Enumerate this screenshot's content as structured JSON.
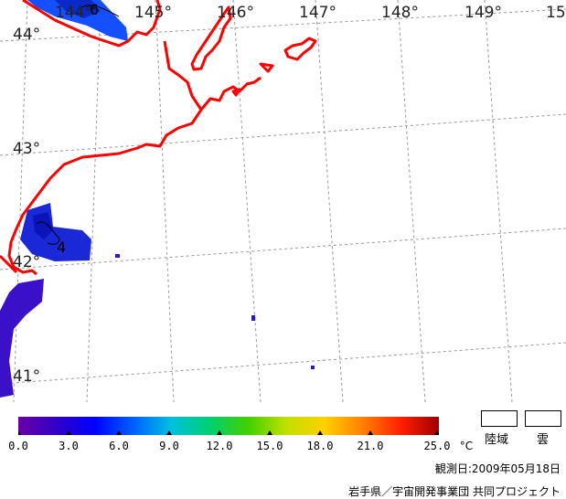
{
  "map": {
    "lon_labels": [
      "144°",
      "145°",
      "146°",
      "147°",
      "148°",
      "149°",
      "15"
    ],
    "lat_labels": [
      "44°",
      "43°",
      "42°",
      "41°"
    ],
    "contour_labels": [
      "6",
      "4"
    ]
  },
  "colorbar": {
    "ticks": [
      "0.0",
      "3.0",
      "6.0",
      "9.0",
      "12.0",
      "15.0",
      "18.0",
      "21.0",
      "25.0"
    ],
    "unit": "°C",
    "colors": [
      "#6a00a8",
      "#3000c8",
      "#0000ff",
      "#0060ff",
      "#00c0e0",
      "#00d070",
      "#40d000",
      "#c0e000",
      "#ffd000",
      "#ff8000",
      "#ff2000",
      "#a00000"
    ]
  },
  "legend": {
    "land": "陸域",
    "cloud": "雲"
  },
  "observation_date": "観測日:2009年05月18日",
  "credit": "岩手県／宇宙開発事業団 共同プロジェクト",
  "colors": {
    "coast": "#ff0000",
    "grid": "#999999"
  }
}
